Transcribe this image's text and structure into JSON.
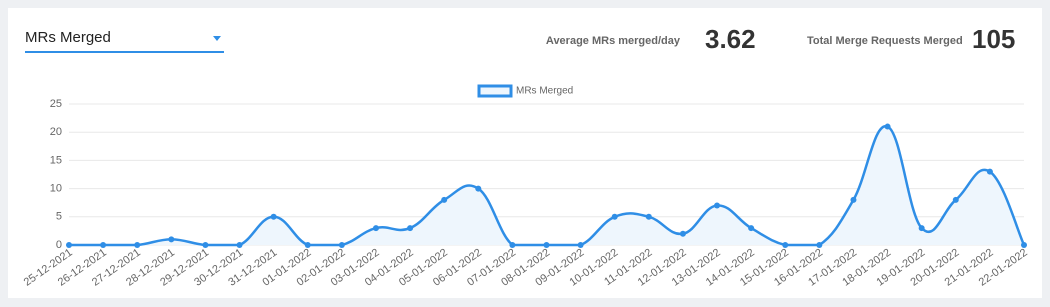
{
  "dropdown": {
    "label": "MRs Merged"
  },
  "stats": [
    {
      "label": "Average MRs merged/day",
      "value": 3.62
    },
    {
      "label": "Total Merge Requests Merged",
      "value": 105
    }
  ],
  "chart_data": {
    "type": "line",
    "categories": [
      "25-12-2021",
      "26-12-2021",
      "27-12-2021",
      "28-12-2021",
      "29-12-2021",
      "30-12-2021",
      "31-12-2021",
      "01-01-2022",
      "02-01-2022",
      "03-01-2022",
      "04-01-2022",
      "05-01-2022",
      "06-01-2022",
      "07-01-2022",
      "08-01-2022",
      "09-01-2022",
      "10-01-2022",
      "11-01-2022",
      "12-01-2022",
      "13-01-2022",
      "14-01-2022",
      "15-01-2022",
      "16-01-2022",
      "17-01-2022",
      "18-01-2022",
      "19-01-2022",
      "20-01-2022",
      "21-01-2022",
      "22-01-2022"
    ],
    "series": [
      {
        "name": "MRs Merged",
        "color": "#2f8ee6",
        "values": [
          0,
          0,
          0,
          1,
          0,
          0,
          5,
          0,
          0,
          3,
          3,
          8,
          10,
          0,
          0,
          0,
          5,
          5,
          2,
          7,
          3,
          0,
          0,
          8,
          21,
          3,
          8,
          13,
          0
        ]
      }
    ],
    "ylim": [
      0,
      25
    ],
    "yticks": [
      0,
      5,
      10,
      15,
      20,
      25
    ],
    "grid": true
  }
}
